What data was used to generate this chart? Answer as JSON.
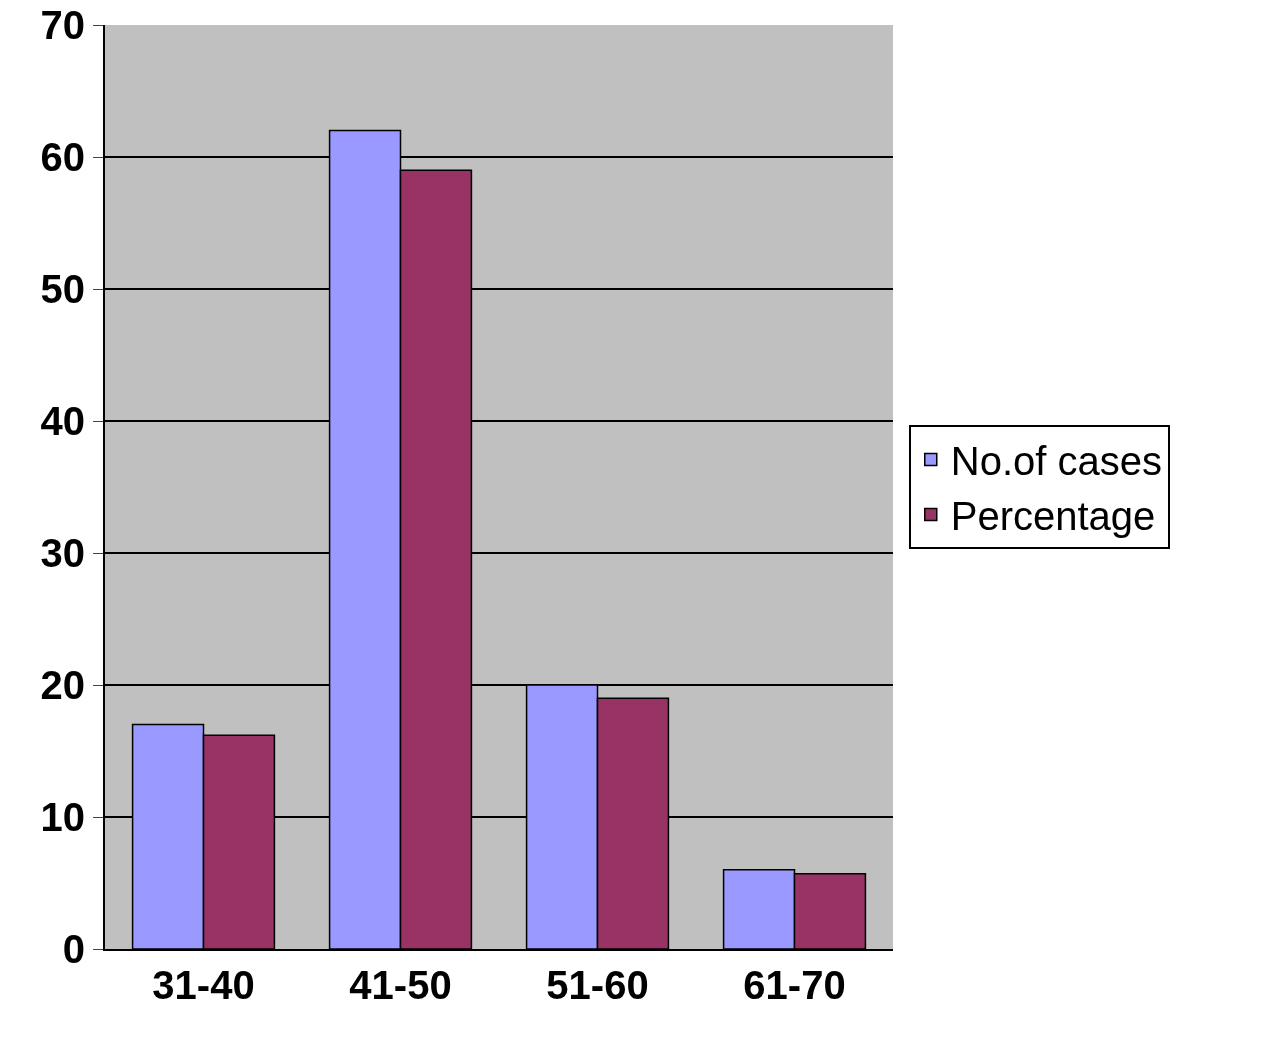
{
  "chart_data": {
    "type": "bar",
    "categories": [
      "31-40",
      "41-50",
      "51-60",
      "61-70"
    ],
    "series": [
      {
        "name": "No.of cases",
        "color": "#9999ff",
        "values": [
          17,
          62,
          20,
          6
        ]
      },
      {
        "name": "Percentage",
        "color": "#993366",
        "values": [
          16.2,
          59,
          19,
          5.7
        ]
      }
    ],
    "ylim": [
      0,
      70
    ],
    "yticks": [
      0,
      10,
      20,
      30,
      40,
      50,
      60,
      70
    ],
    "grid": "y",
    "legend": "right"
  }
}
